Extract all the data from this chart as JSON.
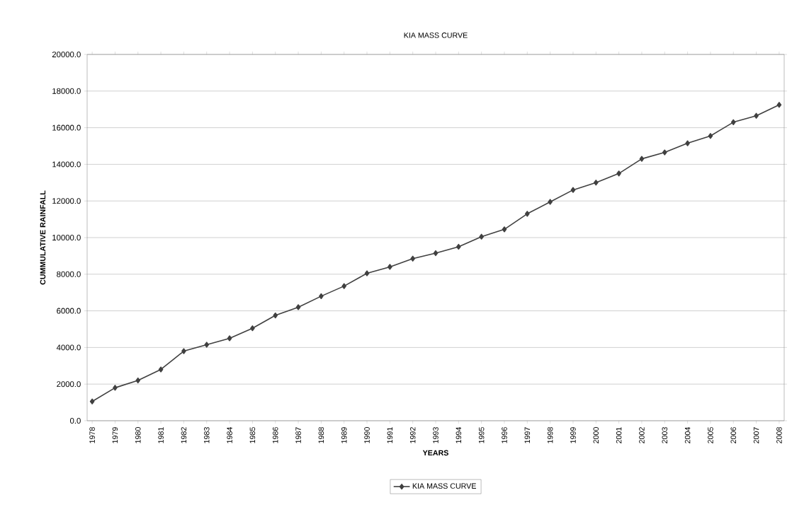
{
  "chart_data": {
    "type": "line",
    "title": "KIA MASS CURVE",
    "xlabel": "YEARS",
    "ylabel": "CUMMULATIVE RAINFALL",
    "categories": [
      "1978",
      "1979",
      "1980",
      "1981",
      "1982",
      "1983",
      "1984",
      "1985",
      "1986",
      "1987",
      "1988",
      "1989",
      "1990",
      "1991",
      "1992",
      "1993",
      "1994",
      "1995",
      "1996",
      "1997",
      "1998",
      "1999",
      "2000",
      "2001",
      "2002",
      "2003",
      "2004",
      "2005",
      "2006",
      "2007",
      "2008"
    ],
    "series": [
      {
        "name": "KIA MASS CURVE",
        "color": "#404040",
        "values": [
          1050,
          1800,
          2200,
          2800,
          3800,
          4150,
          4500,
          5050,
          5750,
          6200,
          6800,
          7350,
          8050,
          8400,
          8850,
          9150,
          9500,
          10050,
          10450,
          11300,
          11950,
          12600,
          13000,
          13500,
          14300,
          14650,
          15150,
          15550,
          16300,
          16650,
          17250
        ]
      }
    ],
    "ylim": [
      0,
      20000
    ],
    "yticks": [
      {
        "value": 0,
        "label": "0.0"
      },
      {
        "value": 2000,
        "label": "2000.0"
      },
      {
        "value": 4000,
        "label": "4000.0"
      },
      {
        "value": 6000,
        "label": "6000.0"
      },
      {
        "value": 8000,
        "label": "8000.0"
      },
      {
        "value": 10000,
        "label": "10000.0"
      },
      {
        "value": 12000,
        "label": "12000.0"
      },
      {
        "value": 14000,
        "label": "14000.0"
      },
      {
        "value": 16000,
        "label": "16000.0"
      },
      {
        "value": 18000,
        "label": "18000.0"
      },
      {
        "value": 20000,
        "label": "20000.0"
      }
    ],
    "grid": "y",
    "legend": "bottom",
    "marker": "diamond",
    "line_style": "solid"
  }
}
